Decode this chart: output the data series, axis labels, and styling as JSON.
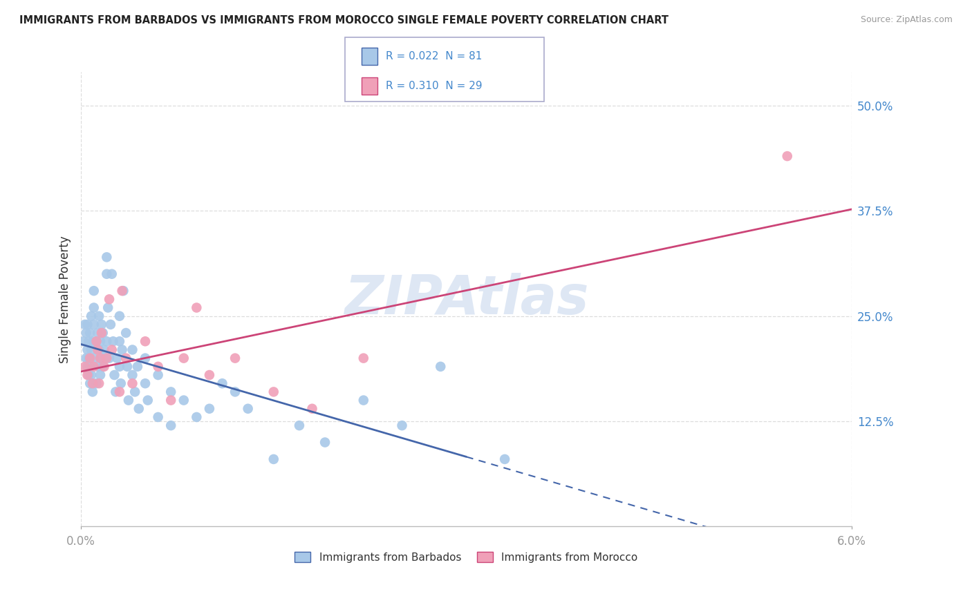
{
  "title": "IMMIGRANTS FROM BARBADOS VS IMMIGRANTS FROM MOROCCO SINGLE FEMALE POVERTY CORRELATION CHART",
  "source": "Source: ZipAtlas.com",
  "ylabel": "Single Female Poverty",
  "xmin": 0.0,
  "xmax": 0.06,
  "ymin": 0.0,
  "ymax": 0.54,
  "yticks": [
    0.125,
    0.25,
    0.375,
    0.5
  ],
  "ytick_labels": [
    "12.5%",
    "25.0%",
    "37.5%",
    "50.0%"
  ],
  "xtick_show": [
    0.0,
    0.06
  ],
  "xtick_labels": [
    "0.0%",
    "6.0%"
  ],
  "legend_r1": "R = 0.022",
  "legend_n1": "N = 81",
  "legend_r2": "R = 0.310",
  "legend_n2": "N = 29",
  "color_barbados": "#a8c8e8",
  "color_morocco": "#f0a0b8",
  "color_barbados_line": "#4466aa",
  "color_morocco_line": "#cc4477",
  "color_text_blue": "#4488cc",
  "color_watermark": "#c8d8ee",
  "background_color": "#ffffff",
  "grid_color": "#dddddd",
  "barbados_x": [
    0.0002,
    0.0003,
    0.0004,
    0.0004,
    0.0005,
    0.0005,
    0.0005,
    0.0006,
    0.0006,
    0.0006,
    0.0007,
    0.0007,
    0.0007,
    0.0008,
    0.0008,
    0.0008,
    0.0009,
    0.0009,
    0.001,
    0.001,
    0.001,
    0.001,
    0.0012,
    0.0012,
    0.0013,
    0.0013,
    0.0014,
    0.0014,
    0.0015,
    0.0015,
    0.0016,
    0.0016,
    0.0017,
    0.0017,
    0.0018,
    0.0019,
    0.002,
    0.002,
    0.002,
    0.0021,
    0.0022,
    0.0023,
    0.0024,
    0.0025,
    0.0026,
    0.0027,
    0.0028,
    0.003,
    0.003,
    0.003,
    0.0031,
    0.0032,
    0.0033,
    0.0035,
    0.0036,
    0.0037,
    0.004,
    0.004,
    0.0042,
    0.0044,
    0.0045,
    0.005,
    0.005,
    0.0052,
    0.006,
    0.006,
    0.007,
    0.007,
    0.008,
    0.009,
    0.01,
    0.011,
    0.012,
    0.013,
    0.015,
    0.017,
    0.019,
    0.022,
    0.025,
    0.028,
    0.033
  ],
  "barbados_y": [
    0.22,
    0.24,
    0.2,
    0.23,
    0.19,
    0.21,
    0.24,
    0.18,
    0.2,
    0.22,
    0.17,
    0.19,
    0.23,
    0.18,
    0.21,
    0.25,
    0.16,
    0.22,
    0.2,
    0.24,
    0.26,
    0.28,
    0.17,
    0.22,
    0.19,
    0.23,
    0.21,
    0.25,
    0.18,
    0.22,
    0.2,
    0.24,
    0.19,
    0.23,
    0.21,
    0.2,
    0.3,
    0.32,
    0.22,
    0.26,
    0.2,
    0.24,
    0.3,
    0.22,
    0.18,
    0.16,
    0.2,
    0.22,
    0.19,
    0.25,
    0.17,
    0.21,
    0.28,
    0.23,
    0.19,
    0.15,
    0.18,
    0.21,
    0.16,
    0.19,
    0.14,
    0.2,
    0.17,
    0.15,
    0.13,
    0.18,
    0.16,
    0.12,
    0.15,
    0.13,
    0.14,
    0.17,
    0.16,
    0.14,
    0.08,
    0.12,
    0.1,
    0.15,
    0.12,
    0.19,
    0.08
  ],
  "morocco_x": [
    0.0003,
    0.0005,
    0.0007,
    0.0009,
    0.001,
    0.0012,
    0.0013,
    0.0014,
    0.0015,
    0.0016,
    0.0018,
    0.002,
    0.0022,
    0.0024,
    0.003,
    0.0032,
    0.0035,
    0.004,
    0.005,
    0.006,
    0.007,
    0.008,
    0.009,
    0.01,
    0.012,
    0.015,
    0.018,
    0.022,
    0.055
  ],
  "morocco_y": [
    0.19,
    0.18,
    0.2,
    0.17,
    0.19,
    0.22,
    0.21,
    0.17,
    0.2,
    0.23,
    0.19,
    0.2,
    0.27,
    0.21,
    0.16,
    0.28,
    0.2,
    0.17,
    0.22,
    0.19,
    0.15,
    0.2,
    0.26,
    0.18,
    0.2,
    0.16,
    0.14,
    0.2,
    0.44
  ]
}
